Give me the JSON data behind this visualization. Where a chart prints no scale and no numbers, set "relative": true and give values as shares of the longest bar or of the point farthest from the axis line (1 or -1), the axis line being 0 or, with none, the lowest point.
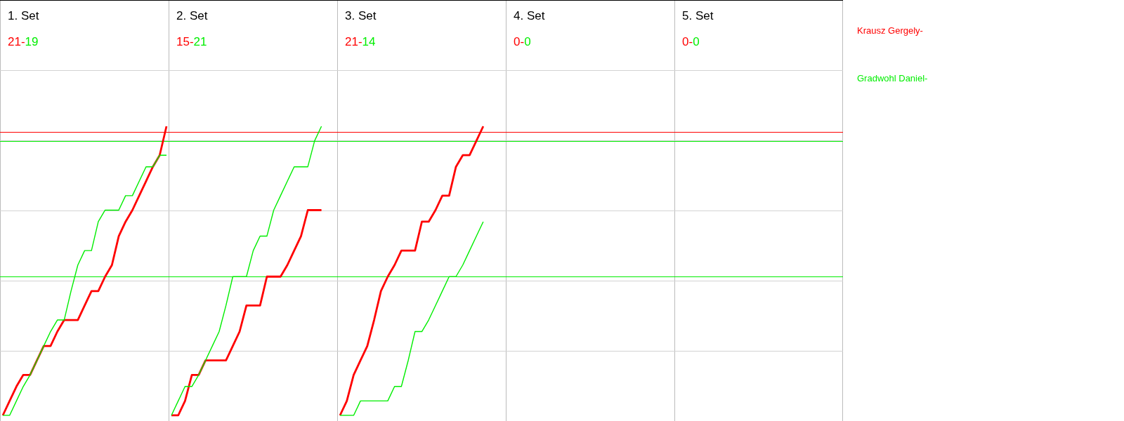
{
  "chart_data": [
    {
      "type": "line",
      "title": "1. Set",
      "annotations": [
        "21-",
        "19"
      ],
      "categories": [
        null,
        null,
        null,
        null,
        null,
        null,
        null,
        null,
        null,
        null,
        null,
        null,
        null,
        null,
        null,
        null,
        null,
        null,
        null,
        null,
        null,
        null,
        null,
        null,
        null
      ],
      "relative": true,
      "series": [
        {
          "name": "Krausz Gergely-",
          "color": "#ff0000",
          "values": [
            0,
            0.05,
            0.1,
            0.14,
            0.14,
            0.19,
            0.24,
            0.24,
            0.29,
            0.33,
            0.33,
            0.33,
            0.38,
            0.43,
            0.43,
            0.48,
            0.52,
            0.62,
            0.67,
            0.71,
            0.76,
            0.81,
            0.86,
            0.9,
            1
          ]
        },
        {
          "name": "Gradwohl Daniel-",
          "color": "#00ee00",
          "values": [
            0,
            0,
            0.05,
            0.1,
            0.14,
            0.19,
            0.24,
            0.29,
            0.33,
            0.33,
            0.43,
            0.52,
            0.57,
            0.57,
            0.67,
            0.71,
            0.71,
            0.71,
            0.76,
            0.76,
            0.81,
            0.86,
            0.86,
            0.9,
            0.9
          ]
        }
      ],
      "grid": true,
      "legend": "right",
      "marker": "none",
      "line_style": "solid",
      "ref_lines": [
        {
          "axis": "y",
          "value": 0.98,
          "color": "#ff0000"
        },
        {
          "axis": "y",
          "value": 0.95,
          "color": "#00ee00"
        },
        {
          "axis": "y",
          "value": 0.48,
          "color": "#00ee00"
        }
      ]
    },
    {
      "type": "line",
      "title": "2. Set",
      "annotations": [
        "15-",
        "21"
      ],
      "categories": [
        null,
        null,
        null,
        null,
        null,
        null,
        null,
        null,
        null,
        null,
        null,
        null,
        null,
        null,
        null,
        null,
        null,
        null,
        null,
        null,
        null,
        null,
        null,
        null,
        null
      ],
      "relative": true,
      "series": [
        {
          "color": "#ff0000",
          "values": [
            0,
            0,
            0.05,
            0.14,
            0.14,
            0.19,
            0.19,
            0.19,
            0.19,
            0.24,
            0.29,
            0.38,
            0.38,
            0.38,
            0.48,
            0.48,
            0.48,
            0.52,
            0.57,
            0.62,
            0.71,
            0.71,
            0.71,
            null,
            null
          ]
        },
        {
          "color": "#00ee00",
          "values": [
            0,
            0.05,
            0.1,
            0.1,
            0.14,
            0.19,
            0.24,
            0.29,
            0.38,
            0.48,
            0.48,
            0.48,
            0.57,
            0.62,
            0.62,
            0.71,
            0.76,
            0.81,
            0.86,
            0.86,
            0.86,
            0.95,
            1,
            null,
            null
          ]
        }
      ],
      "marker": "none",
      "line_style": "solid"
    },
    {
      "type": "line",
      "title": "3. Set",
      "annotations": [
        "21-",
        "14"
      ],
      "categories": [
        null,
        null,
        null,
        null,
        null,
        null,
        null,
        null,
        null,
        null,
        null,
        null,
        null,
        null,
        null,
        null,
        null,
        null,
        null,
        null,
        null,
        null,
        null,
        null,
        null
      ],
      "relative": true,
      "series": [
        {
          "color": "#ff0000",
          "values": [
            0,
            0.05,
            0.14,
            0.19,
            0.24,
            0.33,
            0.43,
            0.48,
            0.52,
            0.57,
            0.57,
            0.57,
            0.67,
            0.67,
            0.71,
            0.76,
            0.76,
            0.86,
            0.9,
            0.9,
            0.95,
            1,
            null,
            null,
            null
          ]
        },
        {
          "color": "#00ee00",
          "values": [
            0,
            0,
            0,
            0.05,
            0.05,
            0.05,
            0.05,
            0.05,
            0.1,
            0.1,
            0.19,
            0.29,
            0.29,
            0.33,
            0.38,
            0.43,
            0.48,
            0.48,
            0.52,
            0.57,
            0.62,
            0.67,
            null,
            null,
            null
          ]
        }
      ],
      "marker": "none",
      "line_style": "solid"
    },
    {
      "type": "other",
      "title": "4. Set",
      "annotations": [
        "0-",
        "0"
      ]
    },
    {
      "type": "other",
      "title": "5. Set",
      "annotations": [
        "0-",
        "0"
      ]
    }
  ]
}
